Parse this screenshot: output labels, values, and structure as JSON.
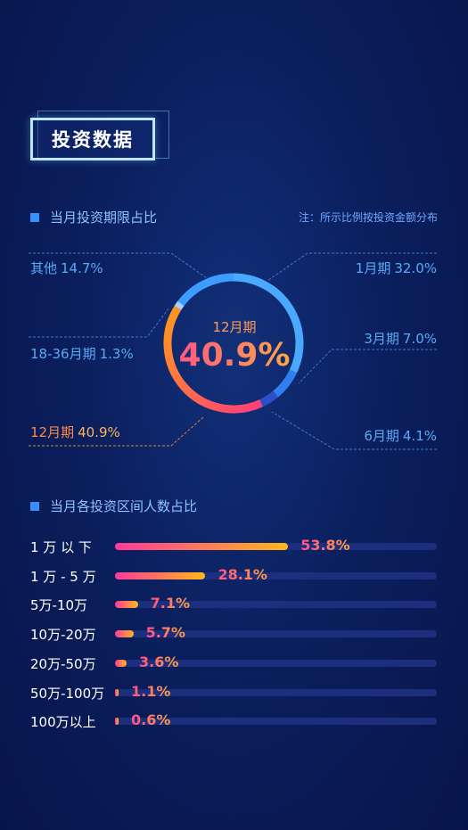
{
  "header": {
    "title": "投资数据"
  },
  "section1": {
    "title": "当月投资期限占比",
    "note": "注：所示比例按投资金额分布"
  },
  "section2": {
    "title": "当月各投资区间人数占比"
  },
  "colors": {
    "accent": "#3a8fff",
    "label": "#5aaaf5",
    "highlight_start": "#ff4f8a",
    "highlight_end": "#ffb13a",
    "track": "#1c2e7e"
  },
  "chart_data": [
    {
      "type": "pie",
      "title": "当月投资期限占比",
      "center": {
        "name": "12月期",
        "value": "40.9%"
      },
      "slices": [
        {
          "label": "1月期",
          "pct_text": "32.0%",
          "value": 32.0,
          "color": "#4aa8ff"
        },
        {
          "label": "3月期",
          "pct_text": "7.0%",
          "value": 7.0,
          "color": "#2f7ff0"
        },
        {
          "label": "6月期",
          "pct_text": "4.1%",
          "value": 4.1,
          "color": "#2a50c8"
        },
        {
          "label": "12月期",
          "pct_text": "40.9%",
          "value": 40.9,
          "color": "gradient"
        },
        {
          "label": "18-36月期",
          "pct_text": "1.3%",
          "value": 1.3,
          "color": "#9fd4ff"
        },
        {
          "label": "其他",
          "pct_text": "14.7%",
          "value": 14.7,
          "color": "#3d9cff"
        }
      ]
    },
    {
      "type": "bar",
      "title": "当月各投资区间人数占比",
      "categories": [
        "1 万 以 下",
        "1 万 - 5 万",
        "5万-10万",
        "10万-20万",
        "20万-50万",
        "50万-100万",
        "100万以上"
      ],
      "values": [
        53.8,
        28.1,
        7.1,
        5.7,
        3.6,
        1.1,
        0.6
      ],
      "value_labels": [
        "53.8%",
        "28.1%",
        "7.1%",
        "5.7%",
        "3.6%",
        "1.1%",
        "0.6%"
      ],
      "xlim": [
        0,
        100
      ]
    }
  ]
}
